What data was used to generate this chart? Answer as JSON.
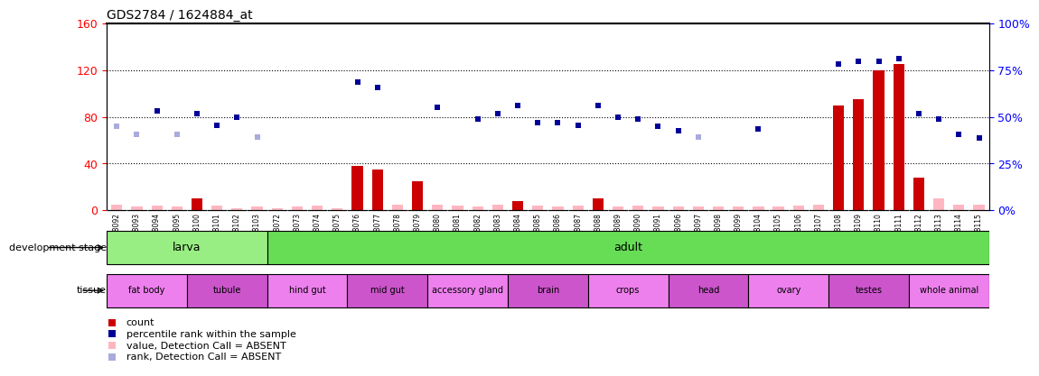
{
  "title": "GDS2784 / 1624884_at",
  "samples": [
    "GSM188092",
    "GSM188093",
    "GSM188094",
    "GSM188095",
    "GSM188100",
    "GSM188101",
    "GSM188102",
    "GSM188103",
    "GSM188072",
    "GSM188073",
    "GSM188074",
    "GSM188075",
    "GSM188076",
    "GSM188077",
    "GSM188078",
    "GSM188079",
    "GSM188080",
    "GSM188081",
    "GSM188082",
    "GSM188083",
    "GSM188084",
    "GSM188085",
    "GSM188086",
    "GSM188087",
    "GSM188088",
    "GSM188089",
    "GSM188090",
    "GSM188091",
    "GSM188096",
    "GSM188097",
    "GSM188098",
    "GSM188099",
    "GSM188104",
    "GSM188105",
    "GSM188106",
    "GSM188107",
    "GSM188108",
    "GSM188109",
    "GSM188110",
    "GSM188111",
    "GSM188112",
    "GSM188113",
    "GSM188114",
    "GSM188115"
  ],
  "count": [
    5,
    3,
    4,
    3,
    10,
    4,
    2,
    3,
    2,
    3,
    4,
    2,
    38,
    35,
    5,
    25,
    5,
    4,
    3,
    5,
    8,
    4,
    3,
    4,
    10,
    3,
    4,
    3,
    3,
    3,
    3,
    3,
    3,
    3,
    4,
    5,
    90,
    95,
    120,
    125,
    28,
    10,
    5,
    5
  ],
  "count_absent": [
    true,
    true,
    true,
    true,
    false,
    true,
    true,
    true,
    true,
    true,
    true,
    true,
    false,
    false,
    true,
    false,
    true,
    true,
    true,
    true,
    false,
    true,
    true,
    true,
    false,
    true,
    true,
    true,
    true,
    true,
    true,
    true,
    true,
    true,
    true,
    true,
    false,
    false,
    false,
    false,
    false,
    true,
    true,
    true
  ],
  "rank_left": [
    72,
    65,
    85,
    65,
    83,
    73,
    80,
    63,
    null,
    null,
    null,
    null,
    110,
    105,
    null,
    null,
    88,
    null,
    78,
    83,
    90,
    75,
    75,
    73,
    90,
    80,
    78,
    72,
    68,
    63,
    null,
    null,
    70,
    null,
    null,
    null,
    125,
    128,
    128,
    130,
    83,
    78,
    65,
    62
  ],
  "rank_absent": [
    true,
    true,
    false,
    true,
    false,
    false,
    false,
    true,
    null,
    null,
    null,
    null,
    false,
    false,
    null,
    null,
    false,
    null,
    false,
    false,
    false,
    false,
    false,
    false,
    false,
    false,
    false,
    false,
    false,
    true,
    null,
    null,
    false,
    null,
    null,
    null,
    false,
    false,
    false,
    false,
    false,
    false,
    false,
    false
  ],
  "ylim_left": [
    0,
    160
  ],
  "ylim_right": [
    0,
    100
  ],
  "yticks_left": [
    0,
    40,
    80,
    120,
    160
  ],
  "yticks_right": [
    0,
    25,
    50,
    75,
    100
  ],
  "development_stages": [
    {
      "label": "larva",
      "start": 0,
      "end": 8,
      "color": "#98EE82"
    },
    {
      "label": "adult",
      "start": 8,
      "end": 44,
      "color": "#66DD55"
    }
  ],
  "tissues": [
    {
      "label": "fat body",
      "start": 0,
      "end": 4,
      "color": "#EE80EE"
    },
    {
      "label": "tubule",
      "start": 4,
      "end": 8,
      "color": "#CC55CC"
    },
    {
      "label": "hind gut",
      "start": 8,
      "end": 12,
      "color": "#EE80EE"
    },
    {
      "label": "mid gut",
      "start": 12,
      "end": 16,
      "color": "#CC55CC"
    },
    {
      "label": "accessory gland",
      "start": 16,
      "end": 20,
      "color": "#EE80EE"
    },
    {
      "label": "brain",
      "start": 20,
      "end": 24,
      "color": "#CC55CC"
    },
    {
      "label": "crops",
      "start": 24,
      "end": 28,
      "color": "#EE80EE"
    },
    {
      "label": "head",
      "start": 28,
      "end": 32,
      "color": "#CC55CC"
    },
    {
      "label": "ovary",
      "start": 32,
      "end": 36,
      "color": "#EE80EE"
    },
    {
      "label": "testes",
      "start": 36,
      "end": 40,
      "color": "#CC55CC"
    },
    {
      "label": "whole animal",
      "start": 40,
      "end": 44,
      "color": "#EE80EE"
    }
  ],
  "color_count_present": "#CC0000",
  "color_count_absent": "#FFB6C1",
  "color_rank_present": "#000099",
  "color_rank_absent": "#AAAADD",
  "bg_plot": "#FFFFFF",
  "bg_label_strip": "#CCCCCC"
}
